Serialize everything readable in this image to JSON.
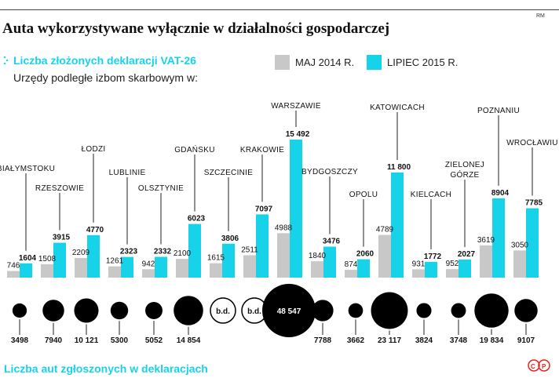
{
  "header": {
    "title": "Auta wykorzystywane wyłącznie w działalności gospodarczej",
    "credit": "RM",
    "subtitle": "Liczba złożonych deklaracji VAT-26",
    "caption": "Urzędy podległe izbom skarbowym w:"
  },
  "footer": {
    "caption": "Liczba aut zgłoszonych w deklaracjach",
    "logo": "©P"
  },
  "colors": {
    "may": "#c8c8c8",
    "july": "#17d3ea",
    "circle": "#000000"
  },
  "chart_data": {
    "type": "bar",
    "title": "Liczba złożonych deklaracji VAT-26",
    "legend": [
      "MAJ 2014 R.",
      "LIPIEC 2015 R."
    ],
    "categories": [
      "BIAŁYMSTOKU",
      "RZESZOWIE",
      "ŁODZI",
      "LUBLINIE",
      "OLSZTYNIE",
      "GDAŃSKU",
      "SZCZECINIE",
      "KRAKOWIE",
      "WARSZAWIE",
      "BYDGOSZCZY",
      "OPOLU",
      "KATOWICACH",
      "KIELCACH",
      "ZIELONEJ GÓRZE",
      "POZNANIU",
      "WROCŁAWIU"
    ],
    "series": [
      {
        "name": "MAJ 2014 R.",
        "values": [
          746,
          1508,
          2209,
          1261,
          942,
          2100,
          1615,
          2511,
          4988,
          1840,
          874,
          4789,
          931,
          952,
          3619,
          3050
        ]
      },
      {
        "name": "LIPIEC 2015 R.",
        "values": [
          1604,
          3915,
          4770,
          2323,
          2332,
          6023,
          3806,
          7097,
          15492,
          3476,
          2060,
          11800,
          1772,
          2027,
          8904,
          7785
        ]
      }
    ],
    "value_labels_may": [
      "746",
      "1508",
      "2209",
      "1261",
      "942",
      "2100",
      "1615",
      "2511",
      "4988",
      "1840",
      "874",
      "4789",
      "931",
      "952",
      "3619",
      "3050"
    ],
    "value_labels_july": [
      "1604",
      "3915",
      "4770",
      "2323",
      "2332",
      "6023",
      "3806",
      "7097",
      "15 492",
      "3476",
      "2060",
      "11 800",
      "1772",
      "2027",
      "8904",
      "7785"
    ],
    "cars": {
      "values": [
        3498,
        7940,
        10121,
        5300,
        5052,
        14854,
        null,
        null,
        48547,
        7788,
        3662,
        23117,
        3824,
        3748,
        19834,
        9107
      ],
      "labels": [
        "3498",
        "7940",
        "10 121",
        "5300",
        "5052",
        "14 854",
        "b.d.",
        "b.d.",
        "48 547",
        "7788",
        "3662",
        "23 117",
        "3824",
        "3748",
        "19 834",
        "9107"
      ]
    },
    "ylim": [
      0,
      15492
    ]
  }
}
